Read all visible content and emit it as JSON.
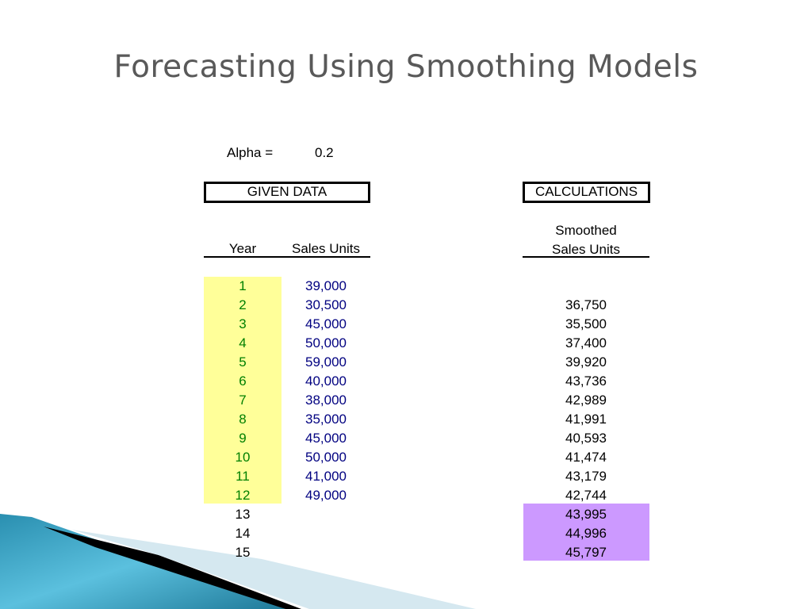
{
  "slide": {
    "title": "Forecasting Using Smoothing Models"
  },
  "alpha": {
    "label": "Alpha =",
    "value": "0.2"
  },
  "given": {
    "header": "GIVEN DATA",
    "col_year": "Year",
    "col_sales": "Sales Units",
    "years": [
      "1",
      "2",
      "3",
      "4",
      "5",
      "6",
      "7",
      "8",
      "9",
      "10",
      "11",
      "12",
      "13",
      "14",
      "15"
    ],
    "sales": [
      "39,000",
      "30,500",
      "45,000",
      "50,000",
      "59,000",
      "40,000",
      "38,000",
      "35,000",
      "45,000",
      "50,000",
      "41,000",
      "49,000"
    ]
  },
  "calc": {
    "header": "CALCULATIONS",
    "col_line1": "Smoothed",
    "col_line2": "Sales Units",
    "smoothed": [
      "36,750",
      "35,500",
      "37,400",
      "39,920",
      "43,736",
      "42,989",
      "41,991",
      "40,593",
      "41,474",
      "43,179",
      "42,744",
      "43,995",
      "44,996",
      "45,797"
    ]
  },
  "colors": {
    "title": "#595959",
    "year_text": "#008000",
    "sales_text": "#000080",
    "given_highlight": "#ffff99",
    "forecast_highlight": "#cc99ff"
  }
}
